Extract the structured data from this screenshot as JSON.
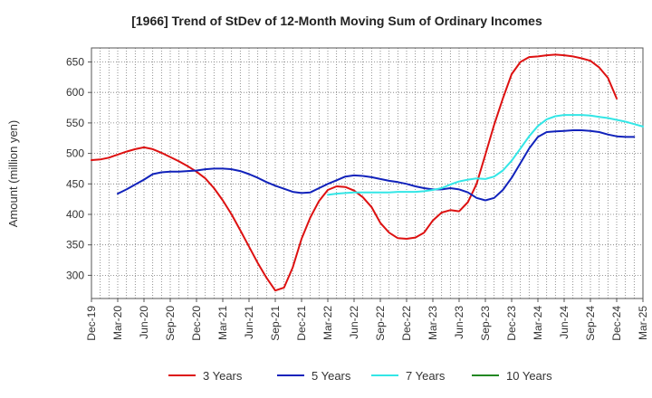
{
  "chart_data": {
    "type": "line",
    "title": "[1966]  Trend of StDev of 12-Month Moving Sum of Ordinary Incomes",
    "xlabel": "",
    "ylabel": "Amount (million yen)",
    "ylim": [
      262,
      673
    ],
    "yticks": [
      300,
      350,
      400,
      450,
      500,
      550,
      600,
      650
    ],
    "x_tick_labels": [
      "Dec-19",
      "Mar-20",
      "Jun-20",
      "Sep-20",
      "Dec-20",
      "Mar-21",
      "Jun-21",
      "Sep-21",
      "Dec-21",
      "Mar-22",
      "Jun-22",
      "Sep-22",
      "Dec-22",
      "Mar-23",
      "Jun-23",
      "Sep-23",
      "Dec-23",
      "Mar-24",
      "Jun-24",
      "Sep-24",
      "Dec-24",
      "Mar-25"
    ],
    "x_months": [
      "Dec-19",
      "Jan-20",
      "Feb-20",
      "Mar-20",
      "Apr-20",
      "May-20",
      "Jun-20",
      "Jul-20",
      "Aug-20",
      "Sep-20",
      "Oct-20",
      "Nov-20",
      "Dec-20",
      "Jan-21",
      "Feb-21",
      "Mar-21",
      "Apr-21",
      "May-21",
      "Jun-21",
      "Jul-21",
      "Aug-21",
      "Sep-21",
      "Oct-21",
      "Nov-21",
      "Dec-21",
      "Jan-22",
      "Feb-22",
      "Mar-22",
      "Apr-22",
      "May-22",
      "Jun-22",
      "Jul-22",
      "Aug-22",
      "Sep-22",
      "Oct-22",
      "Nov-22",
      "Dec-22",
      "Jan-23",
      "Feb-23",
      "Mar-23",
      "Apr-23",
      "May-23",
      "Jun-23",
      "Jul-23",
      "Aug-23",
      "Sep-23",
      "Oct-23",
      "Nov-23",
      "Dec-23",
      "Jan-24",
      "Feb-24",
      "Mar-24",
      "Apr-24",
      "May-24",
      "Jun-24",
      "Jul-24",
      "Aug-24",
      "Sep-24",
      "Oct-24",
      "Nov-24",
      "Dec-24",
      "Jan-25",
      "Feb-25",
      "Mar-25"
    ],
    "grid": true,
    "legend_position": "bottom",
    "series": [
      {
        "name": "3 Years",
        "color": "#dd1111",
        "start_index": 0,
        "values": [
          489,
          490,
          493,
          498,
          503,
          507,
          510,
          507,
          501,
          494,
          487,
          479,
          470,
          459,
          443,
          423,
          400,
          374,
          347,
          320,
          296,
          275,
          280,
          313,
          360,
          395,
          422,
          440,
          446,
          445,
          439,
          428,
          412,
          386,
          370,
          361,
          360,
          362,
          370,
          390,
          403,
          407,
          405,
          420,
          450,
          498,
          547,
          590,
          630,
          650,
          658,
          659,
          661,
          662,
          661,
          659,
          656,
          652,
          641,
          624,
          590
        ]
      },
      {
        "name": "5 Years",
        "color": "#1122bb",
        "start_index": 3,
        "values": [
          434,
          441,
          449,
          457,
          466,
          469,
          470,
          470,
          471,
          472,
          474,
          475,
          475,
          474,
          471,
          466,
          460,
          453,
          447,
          442,
          437,
          435,
          436,
          443,
          450,
          456,
          462,
          464,
          463,
          461,
          458,
          455,
          453,
          450,
          446,
          443,
          441,
          441,
          443,
          441,
          436,
          427,
          423,
          427,
          440,
          460,
          484,
          508,
          527,
          535,
          536,
          537,
          538,
          538,
          537,
          535,
          531,
          528,
          527,
          527
        ]
      },
      {
        "name": "7 Years",
        "color": "#33e6e6",
        "start_index": 27,
        "values": [
          432,
          434,
          435,
          436,
          436,
          436,
          436,
          436,
          437,
          437,
          437,
          438,
          440,
          443,
          449,
          454,
          457,
          459,
          458,
          462,
          472,
          488,
          508,
          528,
          545,
          556,
          561,
          563,
          563,
          563,
          562,
          560,
          558,
          555,
          552,
          548,
          544
        ]
      },
      {
        "name": "10 Years",
        "color": "#228822",
        "start_index": 0,
        "values": []
      }
    ]
  }
}
